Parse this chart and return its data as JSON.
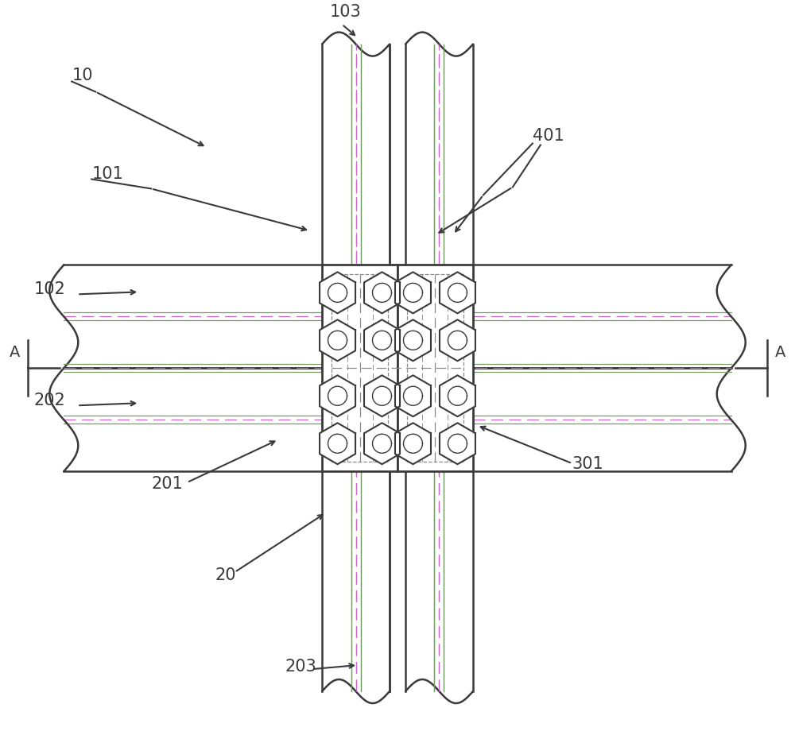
{
  "bg_color": "#ffffff",
  "line_color": "#3a3a3a",
  "gray_color": "#888888",
  "pink_line_color": "#cc66cc",
  "green_line_color": "#779966",
  "figsize": [
    10.0,
    9.25
  ],
  "dpi": 100
}
